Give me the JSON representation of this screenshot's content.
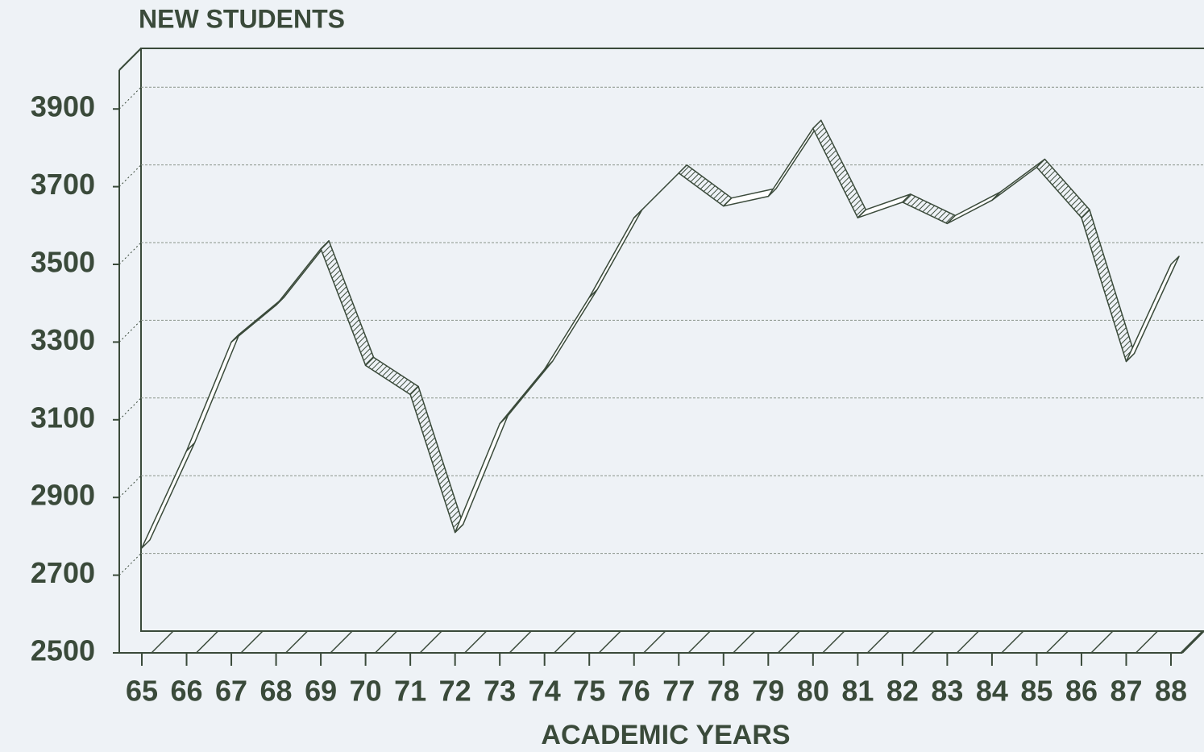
{
  "chart_data": {
    "type": "line",
    "title": "NEW STUDENTS",
    "x_label": "ACADEMIC YEARS",
    "categories": [
      "65",
      "66",
      "67",
      "68",
      "69",
      "70",
      "71",
      "72",
      "73",
      "74",
      "75",
      "76",
      "77",
      "78",
      "79",
      "80",
      "81",
      "82",
      "83",
      "84",
      "85",
      "86",
      "87",
      "88"
    ],
    "values": [
      2770,
      3020,
      3300,
      3395,
      3540,
      3240,
      3165,
      2810,
      3090,
      3230,
      3415,
      3620,
      3735,
      3650,
      3675,
      3850,
      3620,
      3660,
      3605,
      3665,
      3750,
      3620,
      3250,
      3500
    ],
    "color": "#3a4a3a",
    "ylim": [
      2500,
      4000
    ],
    "yticks": [
      2500,
      2700,
      2900,
      3100,
      3300,
      3500,
      3700,
      3900
    ],
    "grid": true
  }
}
